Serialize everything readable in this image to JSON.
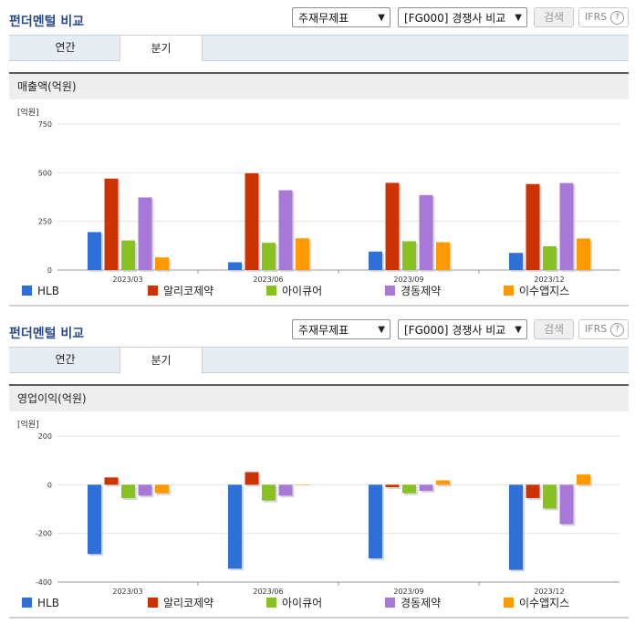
{
  "colors": {
    "HLB": "#2e6fd8",
    "알리코제약": "#cc3300",
    "아이큐어": "#88c122",
    "경동제약": "#a878d8",
    "이수앱지스": "#ff9900"
  },
  "panels": [
    {
      "title": "펀더멘털 비교",
      "select_report": "주재무제표",
      "select_compare": "[FG000] 경쟁사 비교",
      "search_label": "검색",
      "ifrs_label": "IFRS",
      "help_label": "?",
      "tabs": [
        "연간",
        "분기"
      ],
      "section": "매출액(억원)"
    },
    {
      "title": "펀더멘털 비교",
      "select_report": "주재무제표",
      "select_compare": "[FG000] 경쟁사 비교",
      "search_label": "검색",
      "ifrs_label": "IFRS",
      "help_label": "?",
      "tabs": [
        "연간",
        "분기"
      ],
      "section": "영업이익(억원)"
    }
  ],
  "legend": [
    "HLB",
    "알리코제약",
    "아이큐어",
    "경동제약",
    "이수앱지스"
  ],
  "chart_data": [
    {
      "type": "bar",
      "ylabel": "[억원]",
      "ylim": [
        0,
        750
      ],
      "yticks": [
        0,
        250,
        500,
        750
      ],
      "categories": [
        "2023/03",
        "2023/06",
        "2023/09",
        "2023/12"
      ],
      "series": [
        {
          "name": "HLB",
          "values": [
            195,
            40,
            95,
            88
          ]
        },
        {
          "name": "알리코제약",
          "values": [
            470,
            497,
            448,
            442
          ]
        },
        {
          "name": "아이큐어",
          "values": [
            152,
            140,
            148,
            122
          ]
        },
        {
          "name": "경동제약",
          "values": [
            373,
            410,
            385,
            447
          ]
        },
        {
          "name": "이수앱지스",
          "values": [
            65,
            163,
            143,
            162
          ]
        }
      ]
    },
    {
      "type": "bar",
      "ylabel": "[억원]",
      "ylim": [
        -400,
        200
      ],
      "yticks": [
        -400,
        -200,
        0,
        200
      ],
      "categories": [
        "2023/03",
        "2023/06",
        "2023/09",
        "2023/12"
      ],
      "series": [
        {
          "name": "HLB",
          "values": [
            -285,
            -345,
            -303,
            -350
          ]
        },
        {
          "name": "알리코제약",
          "values": [
            30,
            52,
            -10,
            -55
          ]
        },
        {
          "name": "아이큐어",
          "values": [
            -55,
            -65,
            -35,
            -98
          ]
        },
        {
          "name": "경동제약",
          "values": [
            -45,
            -45,
            -25,
            -162
          ]
        },
        {
          "name": "이수앱지스",
          "values": [
            -35,
            0,
            18,
            42
          ]
        }
      ]
    }
  ]
}
